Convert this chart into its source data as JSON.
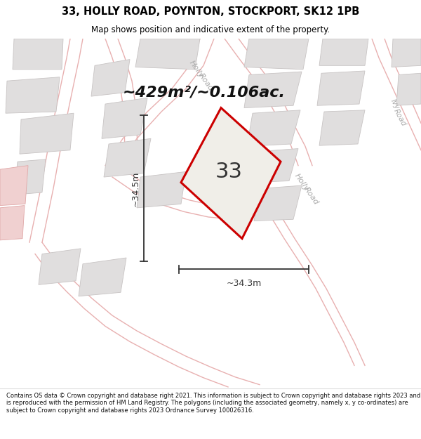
{
  "title": "33, HOLLY ROAD, POYNTON, STOCKPORT, SK12 1PB",
  "subtitle": "Map shows position and indicative extent of the property.",
  "area_text": "~429m²/~0.106ac.",
  "number_label": "33",
  "dim_width": "~34.3m",
  "dim_height": "~34.5m",
  "footer": "Contains OS data © Crown copyright and database right 2021. This information is subject to Crown copyright and database rights 2023 and is reproduced with the permission of HM Land Registry. The polygons (including the associated geometry, namely x, y co-ordinates) are subject to Crown copyright and database rights 2023 Ordnance Survey 100026316.",
  "map_bg": "#f8f6f6",
  "property_fill": "#f0eee8",
  "property_edge": "#cc0000",
  "road_line_color": "#e8b0b0",
  "block_fill": "#e0dede",
  "block_edge": "#c8c4c4",
  "road_label_color": "#aaaaaa",
  "dim_line_color": "#333333",
  "title_color": "#000000",
  "footer_color": "#111111",
  "title_bg": "#ffffff"
}
